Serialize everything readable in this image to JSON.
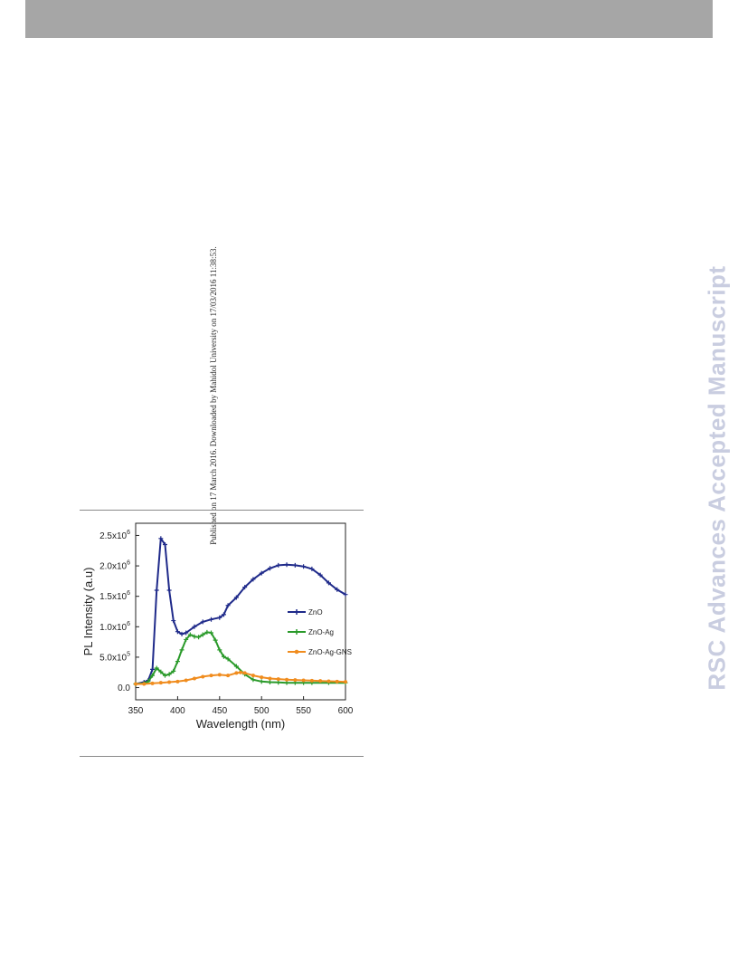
{
  "header": {
    "bar_color": "#a6a6a6"
  },
  "side_note": "Published on 17 March 2016. Downloaded by Mahidol University on 17/03/2016 11:38:53.",
  "watermark": "RSC Advances Accepted Manuscript",
  "chart_data": {
    "type": "line",
    "title": "",
    "xlabel": "Wavelength (nm)",
    "ylabel": "PL Intensity (a.u)",
    "xlim": [
      350,
      600
    ],
    "ylim": [
      -200000,
      2700000
    ],
    "xticks": [
      350,
      400,
      450,
      500,
      550,
      600
    ],
    "yticks": [
      {
        "value": 0,
        "label": "0.0"
      },
      {
        "value": 500000,
        "label": "5.0x10",
        "exp": "5"
      },
      {
        "value": 1000000,
        "label": "1.0x10",
        "exp": "6"
      },
      {
        "value": 1500000,
        "label": "1.5x10",
        "exp": "6"
      },
      {
        "value": 2000000,
        "label": "2.0x10",
        "exp": "6"
      },
      {
        "value": 2500000,
        "label": "2.5x10",
        "exp": "6"
      }
    ],
    "grid": false,
    "legend_position": "right",
    "series": [
      {
        "name": "ZnO",
        "color": "#1f2a8a",
        "x": [
          350,
          360,
          365,
          370,
          375,
          380,
          385,
          390,
          395,
          400,
          405,
          410,
          420,
          430,
          440,
          450,
          455,
          460,
          470,
          480,
          490,
          500,
          510,
          520,
          530,
          540,
          550,
          560,
          570,
          580,
          590,
          600
        ],
        "y": [
          60000,
          90000,
          120000,
          300000,
          1600000,
          2450000,
          2350000,
          1600000,
          1100000,
          920000,
          880000,
          900000,
          1000000,
          1080000,
          1120000,
          1150000,
          1200000,
          1350000,
          1480000,
          1650000,
          1780000,
          1880000,
          1960000,
          2010000,
          2020000,
          2010000,
          1990000,
          1950000,
          1850000,
          1720000,
          1610000,
          1530000
        ]
      },
      {
        "name": "ZnO-Ag",
        "color": "#2a9a2a",
        "x": [
          350,
          360,
          365,
          370,
          375,
          380,
          385,
          390,
          395,
          400,
          405,
          410,
          415,
          420,
          425,
          430,
          435,
          440,
          445,
          450,
          455,
          460,
          470,
          480,
          490,
          500,
          510,
          520,
          530,
          540,
          550,
          560,
          580,
          600
        ],
        "y": [
          60000,
          70000,
          100000,
          200000,
          320000,
          260000,
          200000,
          220000,
          270000,
          430000,
          620000,
          790000,
          870000,
          840000,
          830000,
          870000,
          910000,
          900000,
          780000,
          620000,
          510000,
          470000,
          350000,
          220000,
          130000,
          100000,
          90000,
          85000,
          80000,
          80000,
          80000,
          80000,
          80000,
          80000
        ]
      },
      {
        "name": "ZnO-Ag-GNS",
        "color": "#f08c1e",
        "x": [
          350,
          360,
          370,
          380,
          390,
          400,
          410,
          420,
          430,
          440,
          450,
          460,
          470,
          475,
          480,
          490,
          500,
          510,
          520,
          530,
          540,
          550,
          560,
          570,
          580,
          590,
          600
        ],
        "y": [
          60000,
          60000,
          70000,
          80000,
          90000,
          100000,
          120000,
          150000,
          180000,
          200000,
          210000,
          200000,
          240000,
          250000,
          240000,
          200000,
          170000,
          150000,
          140000,
          130000,
          125000,
          120000,
          115000,
          110000,
          105000,
          100000,
          95000
        ]
      }
    ]
  }
}
